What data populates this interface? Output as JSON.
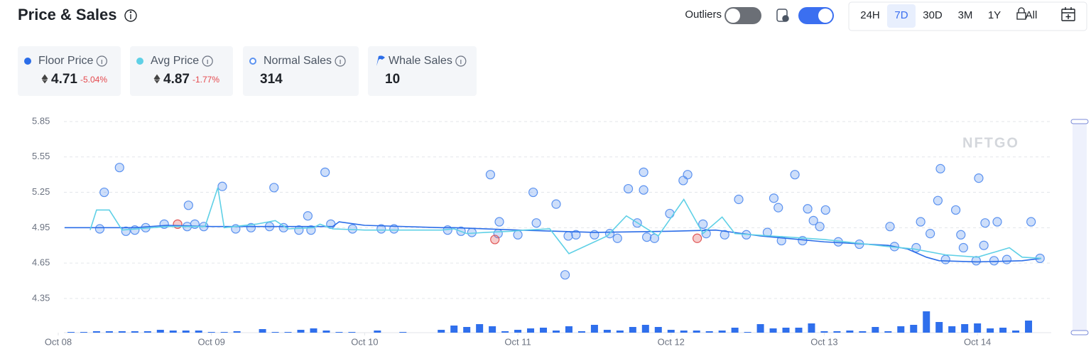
{
  "header": {
    "title": "Price & Sales",
    "outliers": "Outliers",
    "ranges": [
      "24H",
      "7D",
      "30D",
      "3M",
      "1Y",
      "All"
    ],
    "active_range": "7D"
  },
  "stats": [
    {
      "value": 4.71,
      "change": "-5.04%"
    },
    {
      "value": 4.87,
      "change": "-1.77%"
    },
    {
      "value": 314
    },
    {
      "value": 10
    }
  ],
  "chart_data": {
    "type": "combo",
    "watermark": "NFTGO",
    "xlim": [
      0,
      155
    ],
    "xticks": [
      {
        "value": 0,
        "label": "Oct 08"
      },
      {
        "value": 24,
        "label": "Oct 09"
      },
      {
        "value": 48,
        "label": "Oct 10"
      },
      {
        "value": 72,
        "label": "Oct 11"
      },
      {
        "value": 96,
        "label": "Oct 12"
      },
      {
        "value": 120,
        "label": "Oct 13"
      },
      {
        "value": 144,
        "label": "Oct 14"
      }
    ],
    "ylim": [
      4.06,
      5.85
    ],
    "yticks": [
      5.85,
      5.55,
      5.25,
      4.95,
      4.65,
      4.35
    ],
    "grid": true,
    "y2lim": [
      0,
      100
    ],
    "series": [
      {
        "name": "Floor Price",
        "type": "line",
        "color": "#2b6de8",
        "x": [
          1,
          12,
          17,
          24,
          36,
          43,
          44,
          48,
          60,
          62,
          72,
          84,
          96,
          103,
          110,
          120,
          130,
          133,
          136,
          138,
          144,
          151,
          154
        ],
        "values": [
          4.95,
          4.95,
          4.97,
          4.96,
          4.96,
          4.96,
          5.0,
          4.97,
          4.95,
          4.95,
          4.93,
          4.91,
          4.92,
          4.93,
          4.88,
          4.83,
          4.8,
          4.77,
          4.7,
          4.67,
          4.66,
          4.67,
          4.69
        ]
      },
      {
        "name": "Avg Price",
        "type": "line",
        "color": "#5fd0e6",
        "x": [
          5,
          6,
          8,
          10,
          17,
          23,
          25,
          26,
          31,
          34,
          36,
          40,
          41,
          43,
          48,
          60,
          62,
          64,
          67,
          71,
          73,
          77,
          80,
          86,
          89,
          94,
          98,
          101,
          104,
          106,
          120,
          130,
          134,
          139,
          144,
          149,
          151,
          154
        ],
        "values": [
          4.93,
          5.1,
          5.1,
          4.93,
          4.96,
          4.96,
          5.29,
          4.95,
          4.98,
          5.01,
          4.94,
          4.95,
          4.98,
          4.94,
          4.93,
          4.93,
          4.94,
          4.9,
          4.91,
          4.92,
          4.93,
          4.94,
          4.73,
          4.88,
          5.05,
          4.88,
          5.19,
          4.9,
          5.04,
          4.9,
          4.85,
          4.79,
          4.77,
          4.72,
          4.7,
          4.78,
          4.7,
          4.69
        ]
      },
      {
        "name": "Normal Sales",
        "type": "scatter",
        "color": "#5b92f0",
        "x": [
          6.5,
          7.2,
          9.6,
          10.6,
          12,
          13.7,
          16.6,
          20.4,
          20.2,
          21.4,
          22.8,
          25.7,
          27.8,
          30.2,
          33.1,
          33.8,
          35.3,
          37.7,
          39.1,
          39.6,
          41.8,
          42.7,
          46.1,
          50.6,
          52.6,
          61,
          63.1,
          64.8,
          67.7,
          68.9,
          69.1,
          72,
          74.4,
          74.9,
          78,
          79.4,
          79.9,
          81.1,
          84,
          86.4,
          87.6,
          89.3,
          90.7,
          91.7,
          91.7,
          92.2,
          93.4,
          95.8,
          97.9,
          98.6,
          101,
          101.5,
          104.4,
          106.6,
          107.8,
          111.1,
          112.1,
          112.8,
          113.3,
          115.4,
          116.6,
          117.4,
          118.3,
          119.3,
          120.2,
          122.2,
          125.5,
          130.3,
          131,
          134.4,
          135.1,
          136.6,
          137.8,
          138.2,
          140.6,
          141.4,
          141.8,
          144.2,
          145.2,
          147.1,
          145,
          148.6,
          152.4,
          153.8,
          139,
          143.8,
          146.6
        ],
        "values": [
          4.94,
          5.25,
          5.46,
          4.92,
          4.93,
          4.95,
          4.98,
          5.14,
          4.96,
          4.98,
          4.96,
          5.3,
          4.94,
          4.95,
          4.96,
          5.29,
          4.95,
          4.93,
          5.05,
          4.93,
          5.42,
          4.98,
          4.94,
          4.94,
          4.94,
          4.93,
          4.92,
          4.91,
          5.4,
          4.9,
          5.0,
          4.89,
          5.25,
          4.99,
          5.15,
          4.55,
          4.88,
          4.89,
          4.89,
          4.9,
          4.86,
          5.28,
          4.99,
          5.42,
          5.27,
          4.87,
          4.86,
          5.07,
          5.35,
          5.4,
          4.98,
          4.9,
          4.89,
          5.19,
          4.89,
          4.91,
          5.2,
          5.12,
          4.84,
          5.4,
          4.84,
          5.11,
          5.01,
          4.96,
          5.1,
          4.83,
          4.81,
          4.96,
          4.79,
          4.78,
          5.0,
          4.9,
          5.18,
          5.45,
          5.1,
          4.89,
          4.78,
          5.37,
          4.99,
          5.0,
          4.8,
          4.68,
          5.0,
          4.69,
          4.68,
          4.67,
          4.67
        ]
      },
      {
        "name": "Whale Sales",
        "type": "scatter",
        "color": "#2b6de8",
        "x": [],
        "values": []
      },
      {
        "type": "scatter",
        "color": "#e05656",
        "x": [
          18.7,
          68.4,
          100.1
        ],
        "values": [
          4.98,
          4.85,
          4.86
        ]
      },
      {
        "type": "bar",
        "axis": "y2",
        "color": "#2f6fec",
        "x": [
          2,
          4,
          6,
          8,
          10,
          12,
          14,
          16,
          18,
          20,
          22,
          24,
          26,
          28,
          32,
          34,
          36,
          38,
          40,
          42,
          44,
          46,
          50,
          54,
          60,
          62,
          64,
          66,
          68,
          70,
          72,
          74,
          76,
          78,
          80,
          82,
          84,
          86,
          88,
          90,
          92,
          94,
          96,
          98,
          100,
          102,
          104,
          106,
          108,
          110,
          112,
          114,
          116,
          118,
          120,
          122,
          124,
          126,
          128,
          130,
          132,
          134,
          136,
          138,
          140,
          142,
          144,
          146,
          148,
          150,
          152
        ],
        "values": [
          1,
          1,
          2,
          2,
          2,
          2,
          2,
          4,
          3,
          3,
          3,
          1,
          1,
          2,
          5,
          1,
          1,
          4,
          6,
          3,
          1,
          1,
          3,
          1,
          4,
          10,
          8,
          12,
          9,
          2,
          4,
          6,
          7,
          3,
          9,
          2,
          11,
          4,
          3,
          8,
          11,
          8,
          4,
          3,
          3,
          2,
          3,
          7,
          1,
          12,
          6,
          7,
          7,
          13,
          2,
          2,
          3,
          2,
          8,
          2,
          9,
          11,
          30,
          15,
          9,
          12,
          13,
          6,
          7,
          3,
          17
        ]
      }
    ]
  }
}
